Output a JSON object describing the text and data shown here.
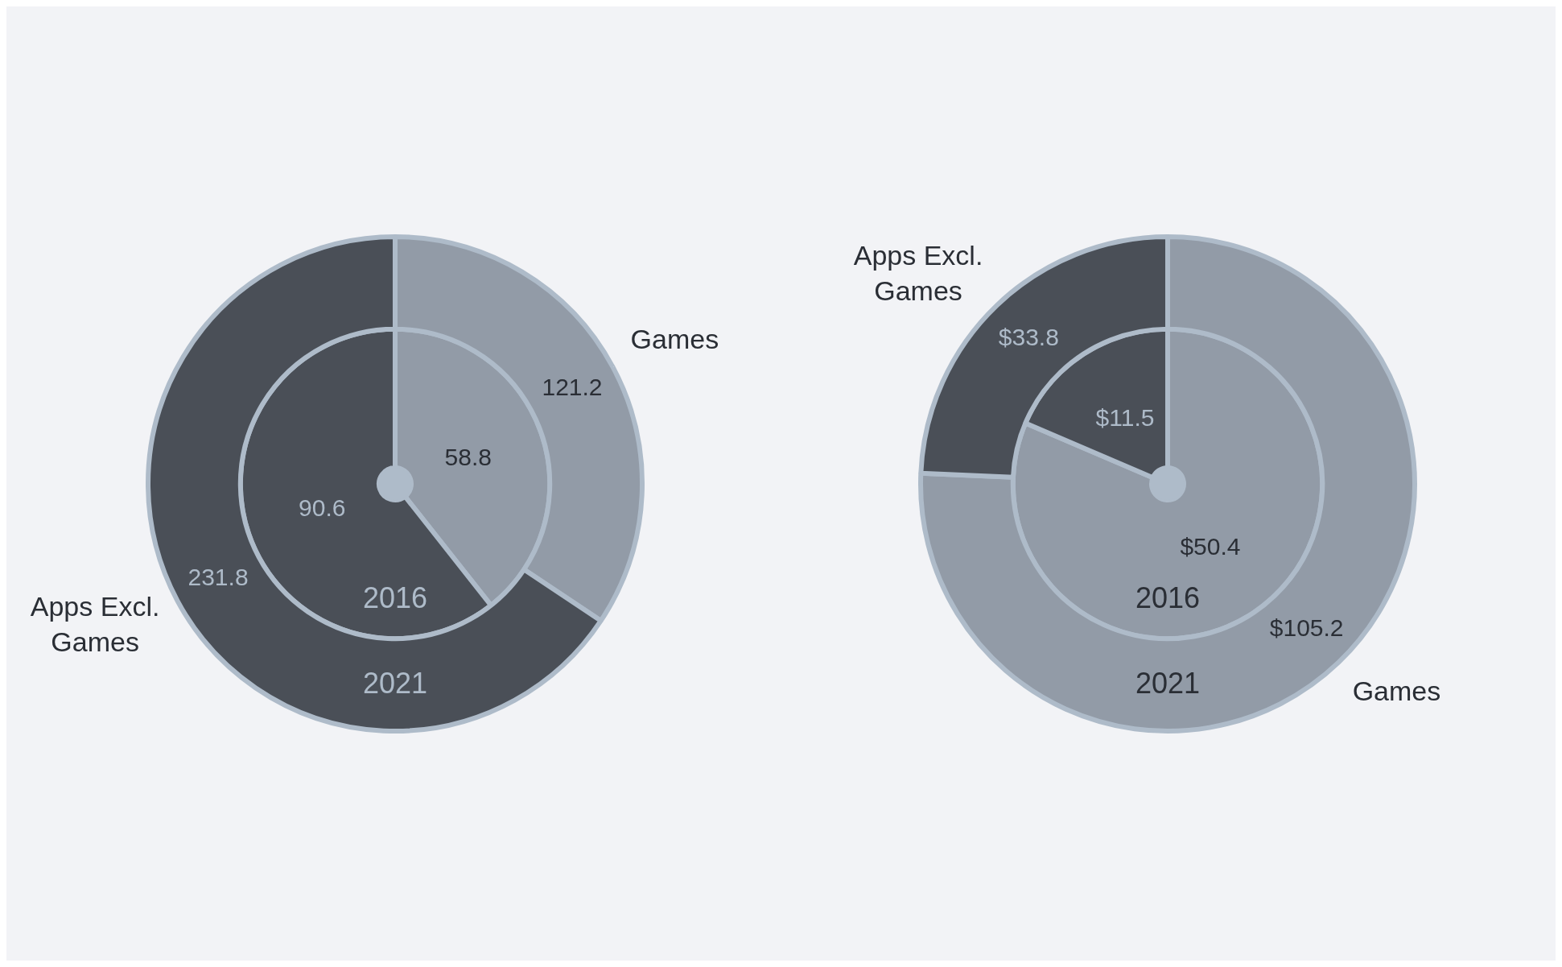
{
  "chart_data": [
    {
      "type": "donut",
      "categories": [
        "Games",
        "Apps Excl. Games"
      ],
      "colors": [
        "#929ba7",
        "#4a4f57"
      ],
      "data_labels": true,
      "series": [
        {
          "name": "2016",
          "values": [
            58.8,
            90.6
          ]
        },
        {
          "name": "2021",
          "values": [
            121.2,
            231.8
          ]
        }
      ]
    },
    {
      "type": "donut",
      "categories": [
        "Games",
        "Apps Excl. Games"
      ],
      "colors": [
        "#929ba7",
        "#4a4f57"
      ],
      "series": [
        {
          "name": "2016",
          "values": [
            50.4,
            11.5
          ],
          "value_labels": [
            "$50.4",
            "$11.5"
          ]
        },
        {
          "name": "2021",
          "values": [
            105.2,
            33.8
          ],
          "value_labels": [
            "$105.2",
            "$33.8"
          ]
        }
      ]
    }
  ]
}
